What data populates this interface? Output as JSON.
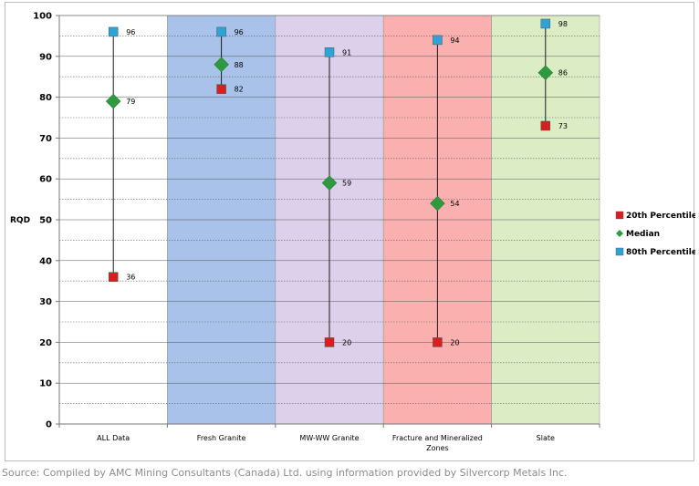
{
  "chart_data": {
    "type": "scatter",
    "title": "",
    "xlabel": "",
    "ylabel": "RQD",
    "ylim": [
      0,
      100
    ],
    "ytick_step": 10,
    "grid": true,
    "legend_position": "right",
    "categories": [
      {
        "label": "ALL Data",
        "label2": "",
        "band_color": "#ffffff"
      },
      {
        "label": "Fresh Granite",
        "label2": "",
        "band_color": "#a9c2ea"
      },
      {
        "label": "MW-WW Granite",
        "label2": "",
        "band_color": "#dcd0ea"
      },
      {
        "label": "Fracture and Mineralized",
        "label2": "Zones",
        "band_color": "#f9b0ae"
      },
      {
        "label": "Slate",
        "label2": "",
        "band_color": "#dcedc6"
      }
    ],
    "series": [
      {
        "name": "20th Percentile",
        "marker": "square",
        "color": "#d81e1e",
        "values": [
          36,
          82,
          20,
          20,
          73
        ]
      },
      {
        "name": "Median",
        "marker": "diamond",
        "color": "#2e9a3e",
        "values": [
          79,
          88,
          59,
          54,
          86
        ]
      },
      {
        "name": "80th Percentile",
        "marker": "square",
        "color": "#2ea3d8",
        "values": [
          96,
          96,
          91,
          94,
          98
        ]
      }
    ]
  },
  "source": "Source: Compiled by AMC Mining Consultants (Canada) Ltd. using information provided by Silvercorp Metals Inc."
}
